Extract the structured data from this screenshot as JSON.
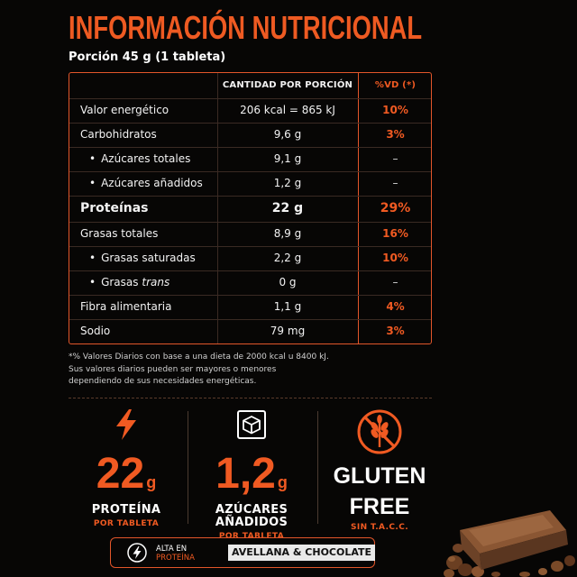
{
  "title": "INFORMACIÓN NUTRICIONAL",
  "serving": "Porción 45 g (1 tableta)",
  "table": {
    "headers": {
      "nutrient": "",
      "amount": "CANTIDAD POR PORCIÓN",
      "dv": "%VD (*)"
    },
    "rows": [
      {
        "name": "Valor energético",
        "amount": "206 kcal = 865 kJ",
        "dv": "10%"
      },
      {
        "name": "Carbohidratos",
        "amount": "9,6 g",
        "dv": "3%"
      },
      {
        "name": "Azúcares totales",
        "amount": "9,1 g",
        "dv": "–"
      },
      {
        "name": "Azúcares añadidos",
        "amount": "1,2 g",
        "dv": "–"
      },
      {
        "name": "Proteínas",
        "amount": "22 g",
        "dv": "29%"
      },
      {
        "name": "Grasas totales",
        "amount": "8,9 g",
        "dv": "16%"
      },
      {
        "name": "Grasas saturadas",
        "amount": "2,2 g",
        "dv": "10%"
      },
      {
        "name": "Grasas",
        "name_italic": "trans",
        "amount": "0 g",
        "dv": "–"
      },
      {
        "name": "Fibra alimentaria",
        "amount": "1,1 g",
        "dv": "4%"
      },
      {
        "name": "Sodio",
        "amount": "79 mg",
        "dv": "3%"
      }
    ]
  },
  "footnote": {
    "line1": "*% Valores Diarios con base a una dieta de 2000 kcal u 8400 kJ.",
    "line2": "Sus valores diarios pueden ser mayores o menores",
    "line3": "dependiendo de sus necesidades energéticas."
  },
  "stats": {
    "protein": {
      "icon": "lightning-icon",
      "value": "22",
      "unit": "g",
      "label": "PROTEÍNA",
      "sublabel": "POR TABLETA"
    },
    "sugar": {
      "icon": "box-icon",
      "value": "1,2",
      "unit": "g",
      "label1": "AZÚCARES",
      "label2": "AÑADIDOS",
      "sublabel": "POR TABLETA"
    },
    "gluten": {
      "icon": "no-wheat-icon",
      "label1": "GLUTEN",
      "label2": "FREE",
      "sublabel": "SIN T.A.C.C."
    }
  },
  "badge": {
    "line1": "ALTA EN",
    "line2": "PROTEÍNA",
    "flavor": "AVELLANA & CHOCOLATE"
  },
  "colors": {
    "accent": "#f05a22",
    "background": "#070605",
    "border": "#e2562a"
  }
}
